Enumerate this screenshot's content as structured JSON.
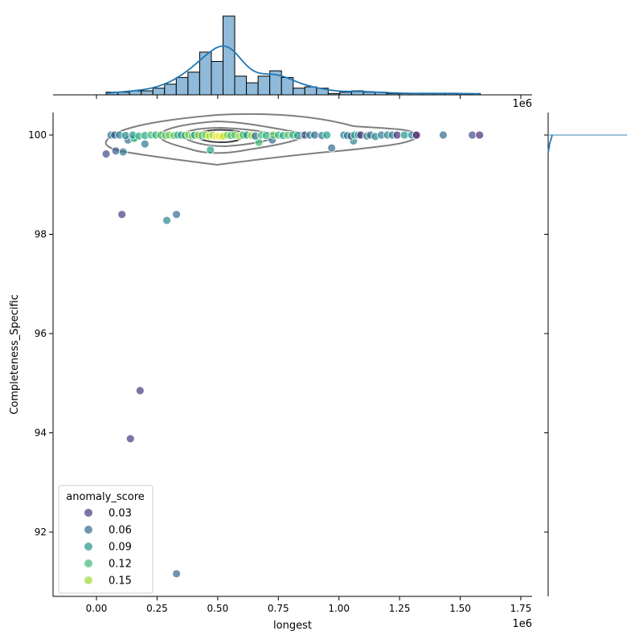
{
  "chart_data": {
    "type": "scatter",
    "kind": "jointplot",
    "xlabel": "longest",
    "ylabel": "Completeness_Specific",
    "x_offset_label": "1e6",
    "xlim": [
      -180000,
      1797000
    ],
    "ylim": [
      90.7,
      100.45
    ],
    "x_ticks": [
      0,
      250000,
      500000,
      750000,
      1000000,
      1250000,
      1500000,
      1750000
    ],
    "x_tick_labels": [
      "0.00",
      "0.25",
      "0.50",
      "0.75",
      "1.00",
      "1.25",
      "1.50",
      "1.75"
    ],
    "y_ticks": [
      92,
      94,
      96,
      98,
      100
    ],
    "y_tick_labels": [
      "92",
      "94",
      "96",
      "98",
      "100"
    ],
    "grid": false,
    "legend": {
      "title": "anomaly_score",
      "placement": "lower-left",
      "entries": [
        {
          "label": "0.03",
          "value": 0.03
        },
        {
          "label": "0.06",
          "value": 0.06
        },
        {
          "label": "0.09",
          "value": 0.09
        },
        {
          "label": "0.12",
          "value": 0.12
        },
        {
          "label": "0.15",
          "value": 0.15
        }
      ]
    },
    "hue": {
      "name": "anomaly_score",
      "colormap": "viridis",
      "range": [
        0.0,
        0.175
      ]
    },
    "points": [
      [
        40000,
        99.62,
        0.04
      ],
      [
        80000,
        99.68,
        0.05
      ],
      [
        110000,
        99.66,
        0.07
      ],
      [
        105000,
        98.4,
        0.03
      ],
      [
        290000,
        98.28,
        0.08
      ],
      [
        330000,
        98.4,
        0.06
      ],
      [
        180000,
        94.85,
        0.03
      ],
      [
        140000,
        93.88,
        0.03
      ],
      [
        330000,
        91.16,
        0.06
      ],
      [
        470000,
        99.7,
        0.1
      ],
      [
        970000,
        99.74,
        0.06
      ],
      [
        130000,
        99.9,
        0.06
      ],
      [
        200000,
        99.82,
        0.07
      ],
      [
        725000,
        99.9,
        0.06
      ],
      [
        1060000,
        99.88,
        0.08
      ],
      [
        670000,
        99.85,
        0.12
      ],
      [
        1430000,
        100,
        0.06
      ],
      [
        1550000,
        100,
        0.04
      ],
      [
        1580000,
        100,
        0.02
      ],
      [
        160000,
        99.96,
        0.1
      ],
      [
        155000,
        99.93,
        0.11
      ],
      [
        60000,
        100,
        0.07
      ],
      [
        75000,
        100,
        0.05
      ],
      [
        95000,
        100,
        0.08
      ],
      [
        120000,
        99.99,
        0.08
      ],
      [
        150000,
        100,
        0.09
      ],
      [
        175000,
        99.98,
        0.11
      ],
      [
        200000,
        99.99,
        0.1
      ],
      [
        225000,
        100,
        0.12
      ],
      [
        245000,
        100,
        0.11
      ],
      [
        265000,
        100,
        0.13
      ],
      [
        285000,
        99.99,
        0.12
      ],
      [
        300000,
        100,
        0.14
      ],
      [
        320000,
        99.99,
        0.13
      ],
      [
        335000,
        100,
        0.11
      ],
      [
        350000,
        100,
        0.09
      ],
      [
        365000,
        99.99,
        0.12
      ],
      [
        380000,
        100,
        0.14
      ],
      [
        395000,
        99.98,
        0.13
      ],
      [
        405000,
        100,
        0.09
      ],
      [
        420000,
        100,
        0.15
      ],
      [
        435000,
        99.99,
        0.12
      ],
      [
        450000,
        100,
        0.14
      ],
      [
        465000,
        99.98,
        0.16
      ],
      [
        480000,
        100,
        0.15
      ],
      [
        495000,
        99.97,
        0.17
      ],
      [
        505000,
        99.98,
        0.17
      ],
      [
        515000,
        99.97,
        0.17
      ],
      [
        525000,
        99.98,
        0.16
      ],
      [
        540000,
        100,
        0.14
      ],
      [
        555000,
        99.99,
        0.12
      ],
      [
        570000,
        100,
        0.13
      ],
      [
        590000,
        99.98,
        0.15
      ],
      [
        605000,
        100,
        0.12
      ],
      [
        620000,
        100,
        0.1
      ],
      [
        640000,
        99.99,
        0.15
      ],
      [
        655000,
        99.98,
        0.06
      ],
      [
        680000,
        100,
        0.12
      ],
      [
        700000,
        99.99,
        0.11
      ],
      [
        730000,
        100,
        0.13
      ],
      [
        750000,
        100,
        0.12
      ],
      [
        770000,
        99.99,
        0.1
      ],
      [
        790000,
        100,
        0.13
      ],
      [
        810000,
        100,
        0.11
      ],
      [
        830000,
        99.99,
        0.09
      ],
      [
        860000,
        100,
        0.04
      ],
      [
        880000,
        100,
        0.08
      ],
      [
        900000,
        100,
        0.06
      ],
      [
        930000,
        99.99,
        0.07
      ],
      [
        950000,
        100,
        0.1
      ],
      [
        1020000,
        100,
        0.08
      ],
      [
        1035000,
        99.99,
        0.07
      ],
      [
        1050000,
        99.98,
        0.05
      ],
      [
        1065000,
        100,
        0.1
      ],
      [
        1080000,
        100,
        0.09
      ],
      [
        1090000,
        100,
        0.02
      ],
      [
        1115000,
        99.98,
        0.07
      ],
      [
        1130000,
        100,
        0.06
      ],
      [
        1150000,
        99.97,
        0.08
      ],
      [
        1175000,
        100,
        0.07
      ],
      [
        1200000,
        100,
        0.08
      ],
      [
        1220000,
        100,
        0.07
      ],
      [
        1240000,
        100,
        0.02
      ],
      [
        1270000,
        100,
        0.09
      ],
      [
        1300000,
        100,
        0.08
      ],
      [
        1320000,
        100,
        0.01
      ]
    ],
    "top_histogram": {
      "bin_start": 40000,
      "bin_width": 48200,
      "counts": [
        2,
        2,
        3,
        3,
        5,
        8,
        13,
        17,
        32,
        25,
        59,
        14,
        9,
        14,
        18,
        13,
        5,
        6,
        5,
        1,
        2,
        3,
        2,
        2,
        1,
        1,
        1,
        1,
        1,
        1,
        1,
        1
      ],
      "kde": true,
      "color": "#1f77b4"
    },
    "right_histogram": {
      "dominant_value": 100,
      "kde": true,
      "color": "#1f77b4"
    },
    "contour_color": "#000000"
  }
}
